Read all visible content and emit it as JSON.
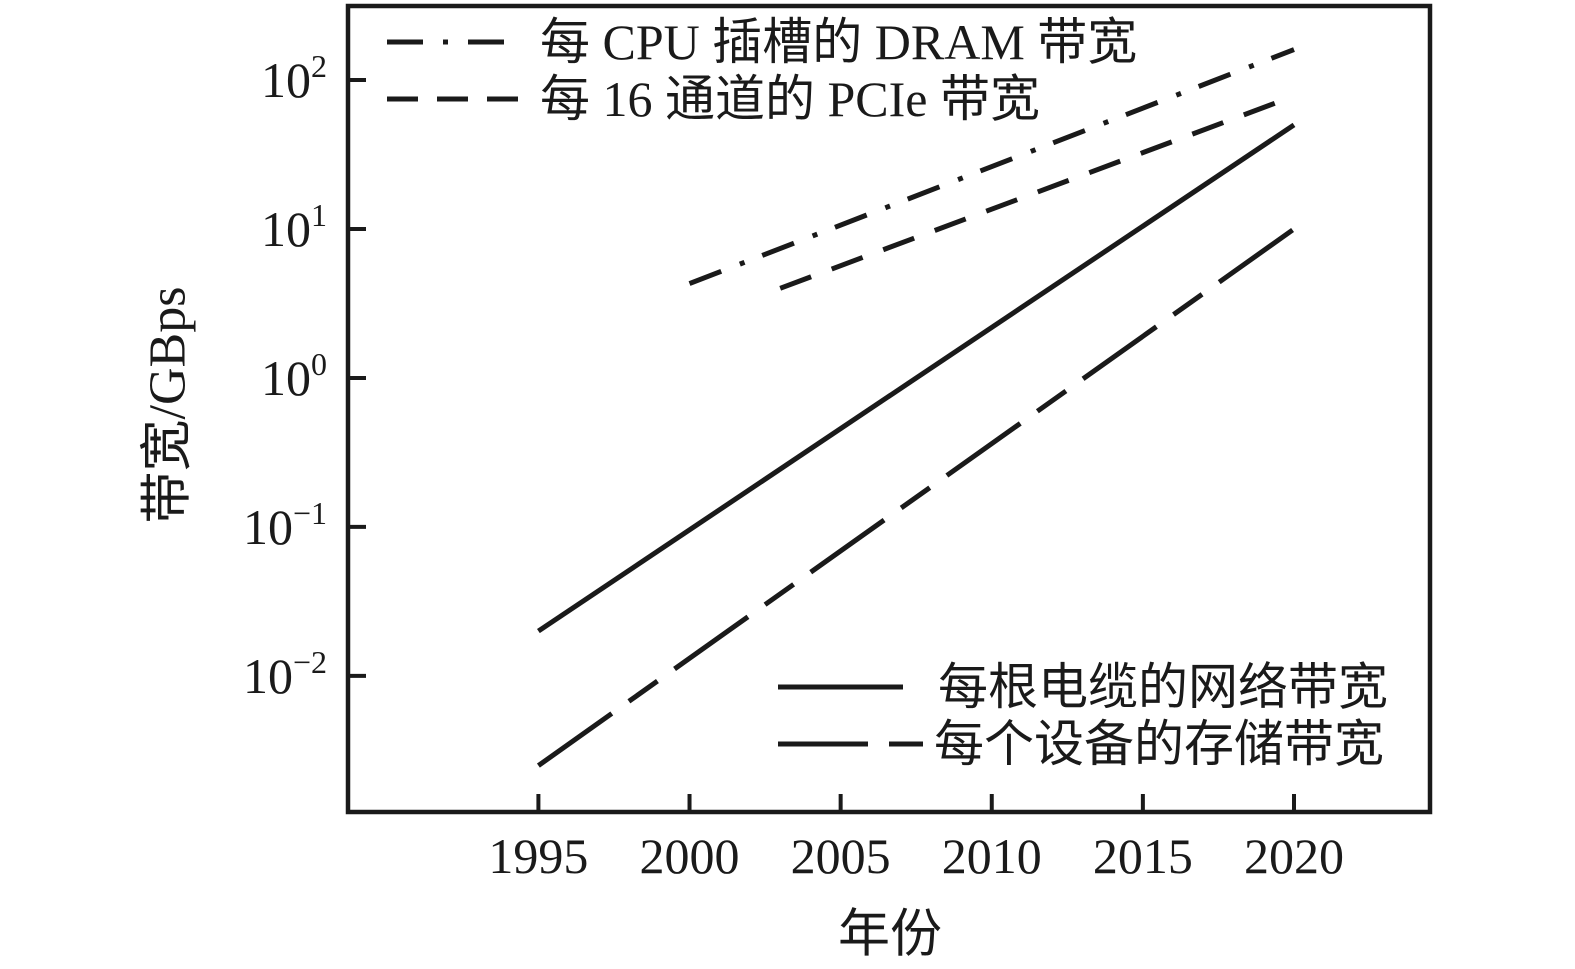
{
  "figure": {
    "background": "#ffffff",
    "ink_color": "#1a1a1a"
  },
  "axes": {
    "x_label": "年份",
    "y_label": "带宽/GBps"
  },
  "legend_top": {
    "items": [
      {
        "label": "每 CPU 插槽的 DRAM 带宽",
        "line_style": "dashdot"
      },
      {
        "label": "每 16 通道的 PCIe 带宽",
        "line_style": "dashed"
      }
    ]
  },
  "legend_bottom": {
    "items": [
      {
        "label": "每根电缆的网络带宽",
        "line_style": "solid"
      },
      {
        "label": "每个设备的存储带宽",
        "line_style": "longdash"
      }
    ]
  },
  "chart_data": {
    "type": "line",
    "title": "",
    "xlabel": "年份",
    "ylabel": "带宽/GBps",
    "x_scale": "linear",
    "y_scale": "log",
    "xlim": [
      1988.7,
      2024.5
    ],
    "ylim": [
      0.00122,
      314
    ],
    "x_ticks": [
      1995,
      2000,
      2005,
      2010,
      2015,
      2020
    ],
    "y_tick_exponents": [
      2,
      1,
      0,
      -1,
      -2
    ],
    "grid": false,
    "legend_positions": [
      "upper left",
      "lower right"
    ],
    "series": [
      {
        "name": "每 CPU 插槽的 DRAM 带宽",
        "line_style": "dashdot",
        "points": [
          {
            "year": 2000,
            "gbps": 4.3
          },
          {
            "year": 2020,
            "gbps": 160
          }
        ]
      },
      {
        "name": "每 16 通道的 PCIe 带宽",
        "line_style": "dashed",
        "points": [
          {
            "year": 2003,
            "gbps": 4.0
          },
          {
            "year": 2020,
            "gbps": 78
          }
        ]
      },
      {
        "name": "每根电缆的网络带宽",
        "line_style": "solid",
        "points": [
          {
            "year": 1995,
            "gbps": 0.02
          },
          {
            "year": 2020,
            "gbps": 50
          }
        ]
      },
      {
        "name": "每个设备的存储带宽",
        "line_style": "longdash",
        "points": [
          {
            "year": 1995,
            "gbps": 0.0025
          },
          {
            "year": 2020,
            "gbps": 10
          }
        ]
      }
    ]
  }
}
